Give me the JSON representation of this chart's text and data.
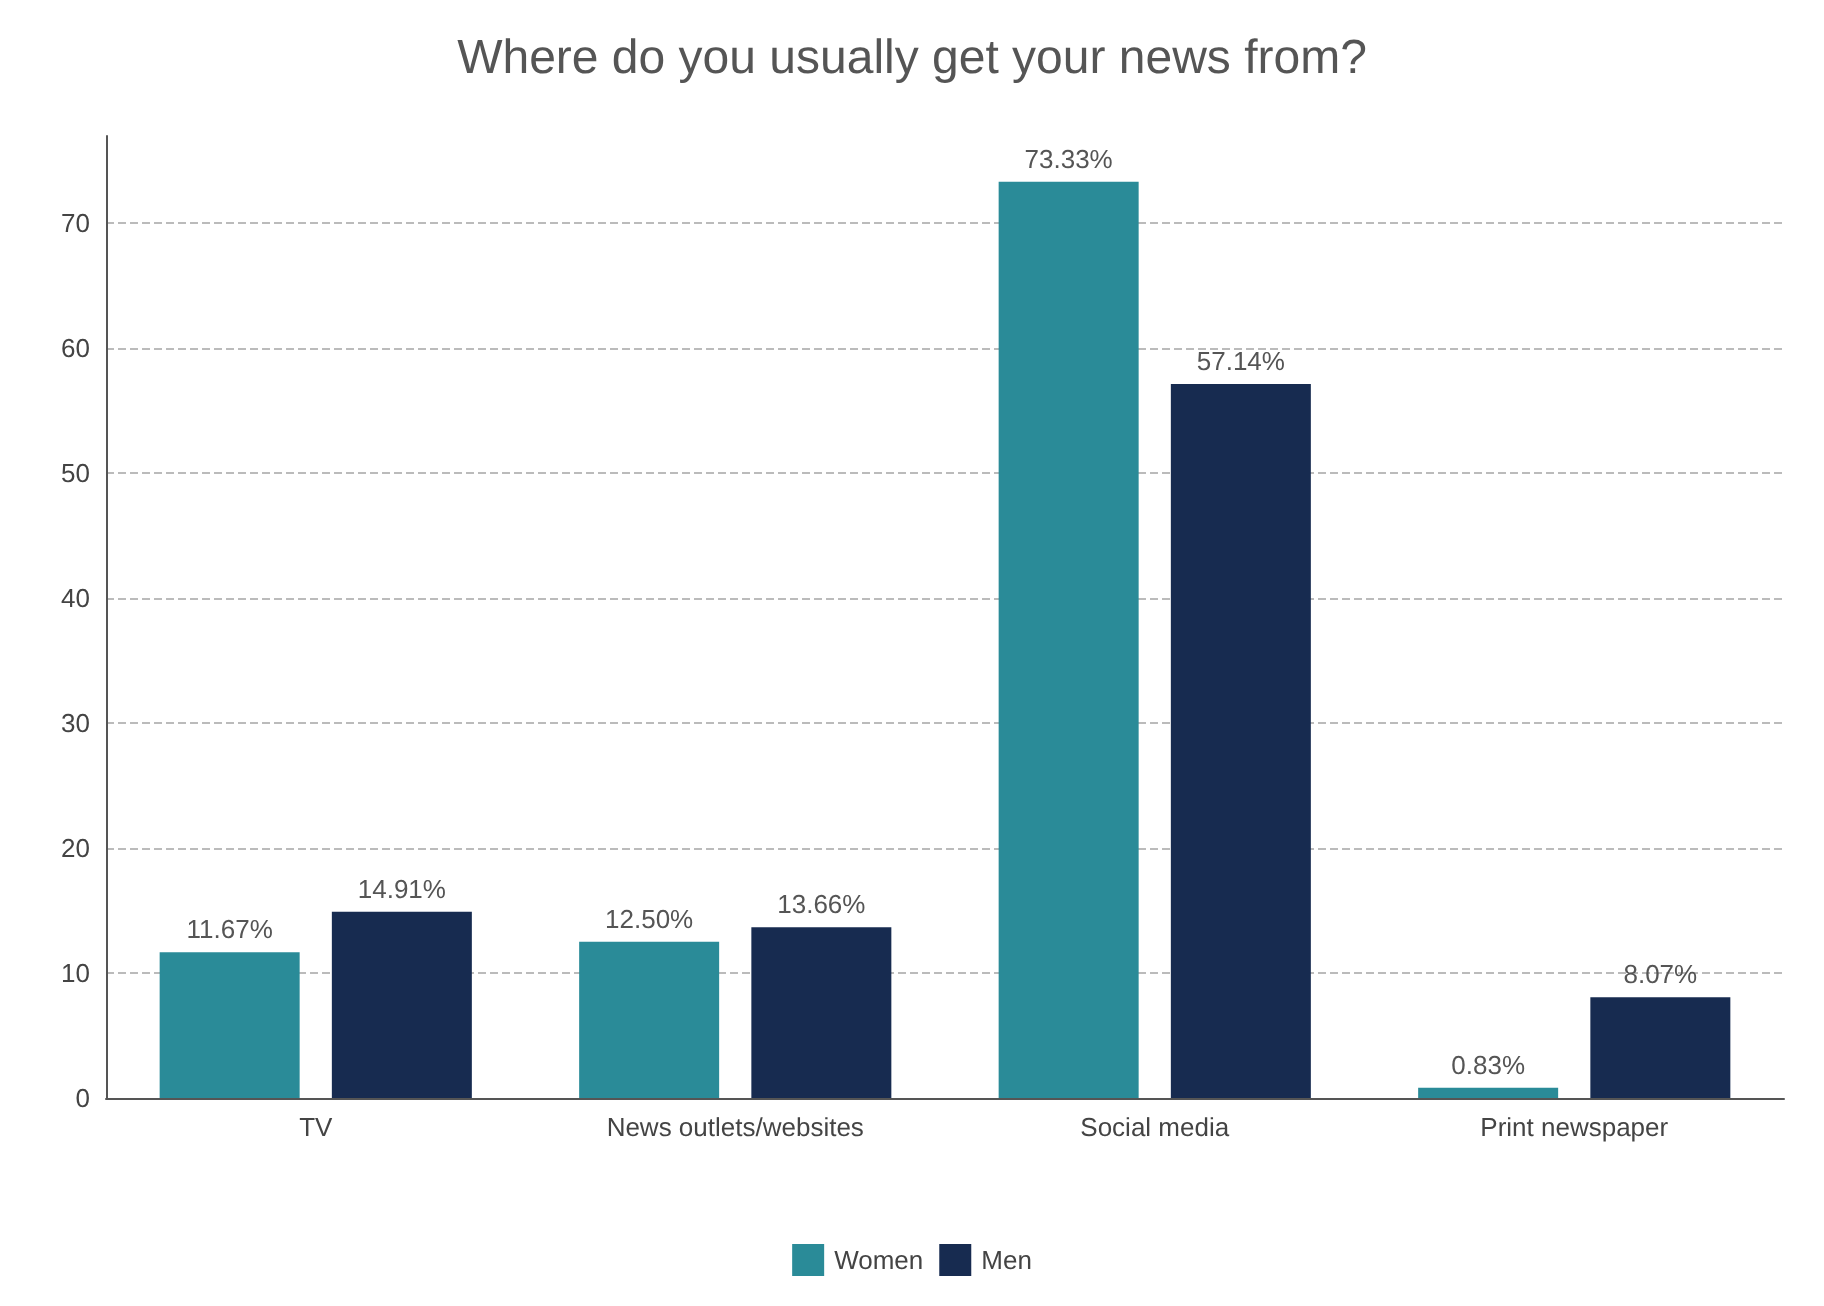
{
  "chart_data": {
    "type": "bar",
    "title": "Where do you usually get your news from?",
    "categories": [
      "TV",
      "News outlets/websites",
      "Social media",
      "Print newspaper"
    ],
    "series": [
      {
        "name": "Women",
        "color": "#2a8b98",
        "values": [
          11.67,
          12.5,
          73.33,
          0.83
        ],
        "value_labels": [
          "11.67%",
          "12.50%",
          "73.33%",
          "0.83%"
        ]
      },
      {
        "name": "Men",
        "color": "#172b50",
        "values": [
          14.91,
          13.66,
          57.14,
          8.07
        ],
        "value_labels": [
          "14.91%",
          "13.66%",
          "57.14%",
          "8.07%"
        ]
      }
    ],
    "ylim": [
      0,
      77
    ],
    "yticks": [
      0,
      10,
      20,
      30,
      40,
      50,
      60,
      70
    ],
    "grid": "y",
    "legend": "bottom"
  }
}
